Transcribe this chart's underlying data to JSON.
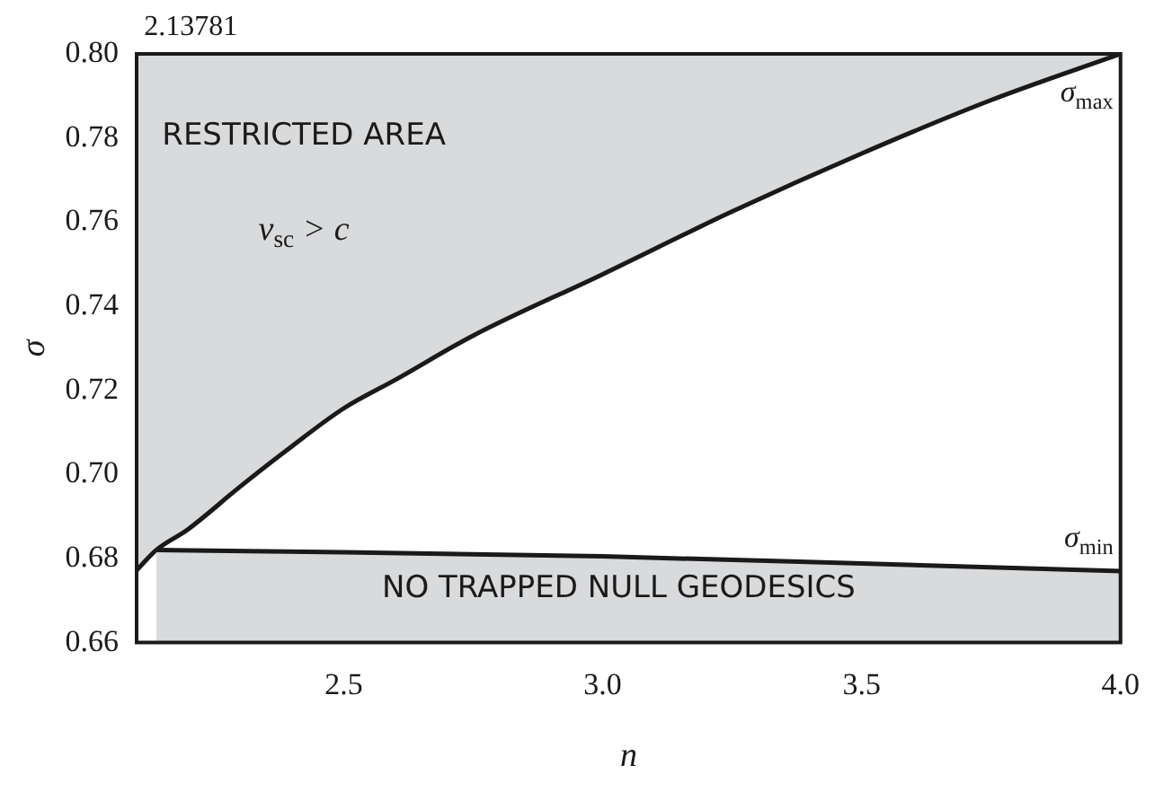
{
  "chart_data": {
    "type": "line",
    "xlabel": "n",
    "ylabel": "σ",
    "xlim": [
      2.1,
      4.0
    ],
    "ylim": [
      0.66,
      0.8
    ],
    "xticks": [
      2.5,
      {
        "value": 3,
        "label": "3.0"
      },
      3.5,
      {
        "value": 4,
        "label": "4.0"
      }
    ],
    "yticks": [
      0.66,
      0.68,
      {
        "value": 0.7,
        "label": "0.70"
      },
      0.72,
      0.74,
      0.76,
      0.78,
      {
        "value": 0.8,
        "label": "0.80"
      }
    ],
    "grid": false,
    "legend": false,
    "marker": "none",
    "line_style": "solid",
    "series": [
      {
        "name": "σ$_{max}$",
        "color": "#1a1a1a",
        "x": [
          2.1,
          2.13781,
          2.2,
          2.3,
          2.4,
          2.5,
          2.6,
          2.75,
          3.0,
          3.25,
          3.5,
          3.75,
          4.0
        ],
        "values": [
          0.6772,
          0.682,
          0.687,
          0.6971,
          0.7067,
          0.7157,
          0.7225,
          0.733,
          0.7476,
          0.7625,
          0.7763,
          0.789,
          0.8
        ]
      },
      {
        "name": "σ$_{min}$",
        "type": "area",
        "color": "#1a1a1a",
        "x": [
          2.13781,
          2.5,
          3.0,
          3.5,
          4.0
        ],
        "values": [
          0.682,
          0.6815,
          0.6805,
          0.6788,
          0.677
        ]
      }
    ],
    "annotations": [
      "2.13781",
      "RESTRICTED AREA",
      "v$_{sc}$ > c",
      "NO TRAPPED NULL GEODESICS"
    ]
  }
}
